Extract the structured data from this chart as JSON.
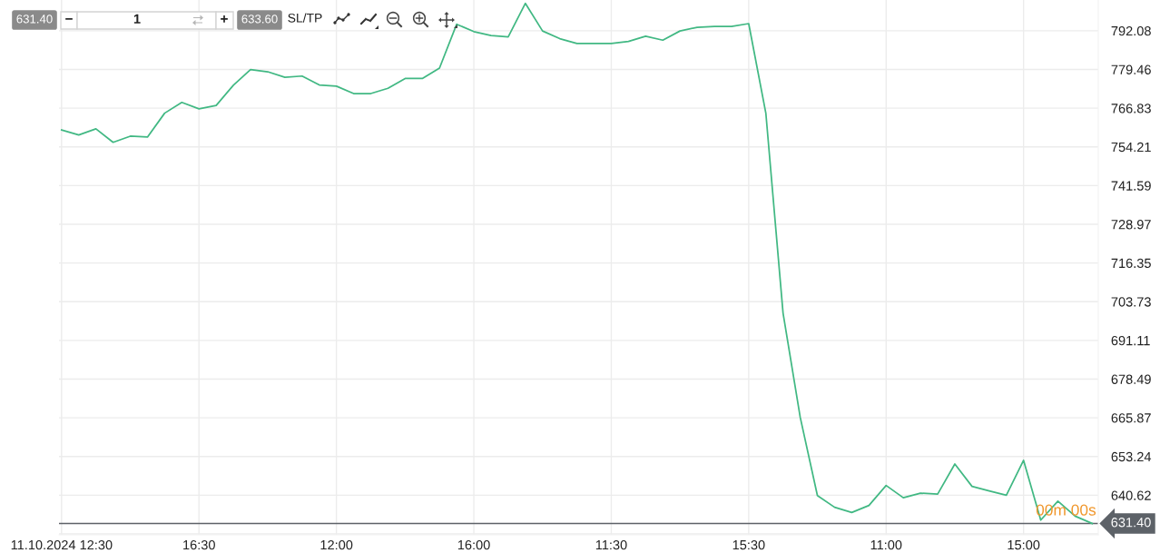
{
  "chart_data": {
    "type": "line",
    "categories": [
      "11.10.2024 12:30",
      null,
      null,
      null,
      null,
      null,
      null,
      null,
      "16:30",
      null,
      null,
      null,
      null,
      null,
      null,
      null,
      "12:00",
      null,
      null,
      null,
      null,
      null,
      null,
      null,
      "16:00",
      null,
      null,
      null,
      null,
      null,
      null,
      null,
      "11:30",
      null,
      null,
      null,
      null,
      null,
      null,
      null,
      "15:30",
      null,
      null,
      null,
      null,
      null,
      null,
      null,
      "11:00",
      null,
      null,
      null,
      null,
      null,
      null,
      null,
      "15:00",
      null,
      null,
      null,
      null
    ],
    "series": [
      {
        "color": "#41b883",
        "values": [
          759.7,
          758.1,
          760.1,
          755.7,
          757.7,
          757.4,
          765.2,
          768.7,
          766.6,
          767.7,
          774.3,
          779.4,
          778.7,
          776.9,
          777.3,
          774.4,
          774.0,
          771.6,
          771.6,
          773.3,
          776.5,
          776.5,
          779.9,
          794.2,
          791.8,
          790.5,
          790.1,
          801.0,
          792.0,
          789.5,
          787.9,
          787.9,
          787.9,
          788.6,
          790.3,
          789.0,
          792.0,
          793.2,
          793.5,
          793.5,
          794.4,
          765.1,
          700.0,
          666.0,
          640.5,
          636.7,
          635.0,
          637.3,
          643.8,
          639.8,
          641.3,
          641.0,
          650.8,
          643.5,
          642.0,
          640.6,
          652.0,
          632.5,
          638.7,
          633.8,
          631.4
        ]
      }
    ],
    "ylim": [
      627.7,
      802.1
    ],
    "yticks": [
      {
        "value": 628.0,
        "label": null
      },
      640.62,
      653.24,
      665.87,
      678.49,
      691.11,
      703.73,
      716.35,
      728.97,
      741.59,
      754.21,
      766.83,
      779.46,
      792.08
    ],
    "grid": true,
    "ref_lines": [
      {
        "axis": "y",
        "value": 631.4,
        "label": "631.40",
        "color": "#5d6268"
      }
    ],
    "annotations": [
      "631.40",
      "−",
      "1",
      "+",
      "633.60",
      "SL/TP",
      "00m 00s"
    ]
  }
}
